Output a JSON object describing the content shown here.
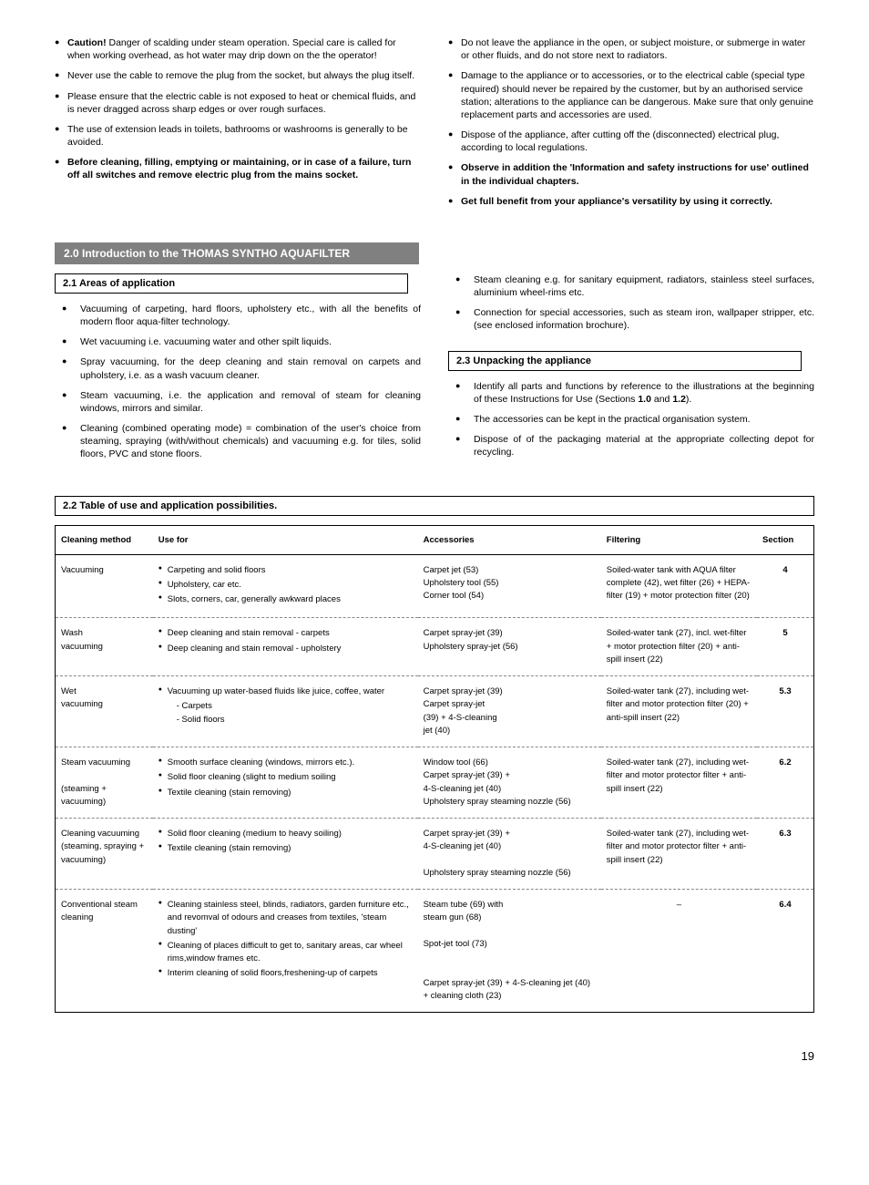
{
  "safety": {
    "left": [
      {
        "bold_prefix": "Caution!",
        "text": " Danger of scalding under steam operation. Special care is called for when working overhead, as hot water may drip down on the the operator!"
      },
      {
        "text": "Never use the cable to remove the plug from the socket, but always the plug itself."
      },
      {
        "text": "Please ensure that the electric cable is not exposed to heat or chemical fluids, and is never dragged across sharp edges or over rough surfaces."
      },
      {
        "text": "The use of extension leads in toilets, bathrooms or washrooms is generally to be avoided."
      },
      {
        "bold_all": true,
        "text": "Before cleaning, filling, emptying or maintaining, or in case of a failure, turn off all switches and remove electric plug from the mains socket."
      }
    ],
    "right": [
      {
        "text": "Do not leave the appliance in the open, or subject moisture, or submerge in water or other fluids, and do not store next to radiators."
      },
      {
        "text": "Damage to the appliance or to accessories, or to the electrical cable (special type required) should never be repaired by the customer, but by an authorised service station; alterations to the appliance can be dangerous. Make sure that only genuine replacement parts and accessories are used."
      },
      {
        "text": "Dispose of the appliance, after cutting off the (disconnected) electrical plug, according to local regulations."
      },
      {
        "bold_all": true,
        "text": "Observe in addition the 'Information and safety instructions for use' outlined in the individual chapters."
      },
      {
        "bold_all": true,
        "text": "Get full benefit from your appliance's versatility by using it correctly."
      }
    ]
  },
  "intro": {
    "heading": "2.0  Introduction to the THOMAS SYNTHO AQUAFILTER",
    "s21": {
      "title": "2.1  Areas of application",
      "items": [
        "Vacuuming of carpeting, hard floors, upholstery etc., with all the benefits of modern floor aqua-filter technology.",
        "Wet vacuuming i.e. vacuuming water and other spilt liquids.",
        "Spray vacuuming, for the deep cleaning and stain removal on carpets and upholstery, i.e. as a wash vacuum cleaner.",
        "Steam vacuuming, i.e. the application and removal of steam for cleaning windows, mirrors and similar.",
        "Cleaning (combined operating mode) = combination of the user's choice from steaming, spraying (with/without chemicals) and vacuuming e.g. for tiles, solid floors, PVC and stone floors."
      ]
    },
    "s21_right": [
      "Steam cleaning e.g. for sanitary equipment, radiators, stainless steel surfaces, aluminium wheel-rims etc.",
      "Connection for special accessories, such as steam iron, wallpaper stripper, etc. (see enclosed information brochure)."
    ],
    "s23": {
      "title": "2.3  Unpacking the appliance",
      "items": [
        {
          "text_pre": "Identify all parts and functions by reference to the illustrations at the beginning of these Instructions for Use (Sections ",
          "b1": "1.0",
          "mid": " and ",
          "b2": "1.2",
          "post": ")."
        },
        {
          "text": "The accessories can be kept in the practical organisation system."
        },
        {
          "text": "Dispose of of the packaging material at the appropriate collecting depot for recycling."
        }
      ]
    }
  },
  "table": {
    "title": "2.2  Table of use and application possibilities.",
    "headers": {
      "method": "Cleaning method",
      "use": "Use for",
      "acc": "Accessories",
      "filter": "Filtering",
      "sec": "Section"
    },
    "rows": [
      {
        "method": "Vacuuming",
        "use": [
          "Carpeting and solid floors",
          "Upholstery, car etc.",
          "Slots, corners, car, generally awkward places"
        ],
        "acc": "Carpet jet (53)\nUpholstery tool (55)\nCorner tool (54)",
        "filter": "Soiled-water tank with AQUA filter complete (42), wet filter (26) + HEPA-filter (19) + motor protection filter (20)",
        "sec": "4"
      },
      {
        "method": "Wash\nvacuuming",
        "use": [
          "Deep cleaning and stain removal - carpets",
          "Deep cleaning and stain removal - upholstery"
        ],
        "acc": "Carpet spray-jet (39)\nUpholstery spray-jet (56)",
        "filter": "Soiled-water tank (27), incl. wet-filter + motor protection filter (20) + anti-spill insert (22)",
        "sec": "5"
      },
      {
        "method": "Wet\nvacuuming",
        "use_sub": {
          "head": "Vacuuming up water-based fluids like juice, coffee, water",
          "subs": [
            "- Carpets",
            "- Solid floors"
          ]
        },
        "acc": "Carpet spray-jet (39)\nCarpet spray-jet\n(39) + 4-S-cleaning\njet (40)",
        "filter": "Soiled-water tank (27), including wet-filter and motor protection filter (20) + anti-spill insert (22)",
        "sec": "5.3"
      },
      {
        "method": "Steam vacuuming\n\n(steaming + vacuuming)",
        "use": [
          "Smooth surface cleaning (windows, mirrors etc.).",
          "Solid floor cleaning (slight to medium soiling",
          "Textile cleaning (stain removing)"
        ],
        "acc": "Window tool (66)\nCarpet spray-jet (39) +\n4-S-cleaning jet (40)\nUpholstery spray steaming nozzle (56)",
        "filter": "Soiled-water tank (27), including wet-filter and motor protector filter + anti-spill insert (22)",
        "sec": "6.2"
      },
      {
        "method": "Cleaning vacuuming (steaming, spraying + vacuuming)",
        "use": [
          "Solid floor cleaning (medium to heavy soiling)",
          "Textile cleaning (stain removing)"
        ],
        "acc": "Carpet spray-jet (39) +\n4-S-cleaning jet (40)\n\nUpholstery spray steaming nozzle (56)",
        "filter": "Soiled-water tank (27), including wet-filter and motor protector filter + anti-spill insert (22)",
        "sec": "6.3"
      },
      {
        "method": "Conventional steam cleaning",
        "use": [
          "Cleaning stainless steel, blinds, radiators, garden furniture etc., and revomval of odours and creases from textiles, 'steam dusting'",
          "Cleaning of places difficult to get to, sanitary areas, car wheel rims,window frames etc.",
          "Interim cleaning of solid floors,freshening-up of carpets"
        ],
        "acc": "Steam tube (69) with\nsteam gun (68)\n\nSpot-jet tool (73)\n\n\nCarpet spray-jet (39) + 4-S-cleaning jet (40) + cleaning cloth (23)",
        "filter": "–",
        "sec": "6.4",
        "last": true
      }
    ]
  },
  "page": "19"
}
